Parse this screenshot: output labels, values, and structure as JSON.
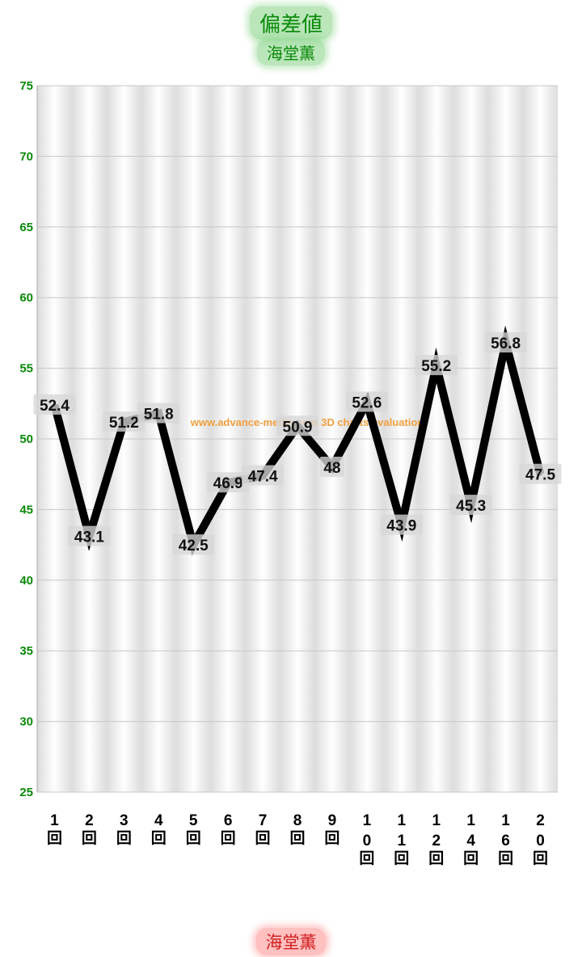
{
  "chart_data": {
    "type": "line",
    "title": "偏差値",
    "subtitle": "海堂薫",
    "categories": [
      "1回",
      "2回",
      "3回",
      "4回",
      "5回",
      "6回",
      "7回",
      "8回",
      "9回",
      "10回",
      "11回",
      "12回",
      "14回",
      "16回",
      "20回"
    ],
    "series": [
      {
        "name": "海堂薫",
        "values": [
          52.4,
          43.1,
          51.2,
          51.8,
          42.5,
          46.9,
          47.4,
          50.9,
          48,
          52.6,
          43.9,
          55.2,
          45.3,
          56.8,
          47.5
        ],
        "color": "#000000"
      }
    ],
    "ylim": [
      25,
      75
    ],
    "yticks": [
      25,
      30,
      35,
      40,
      45,
      50,
      55,
      60,
      65,
      70,
      75
    ],
    "grid": true,
    "legend_position": "bottom",
    "watermark": "www.advance-media.com 3D charts evaluation"
  },
  "colors": {
    "axis_label": "#0a8a0a",
    "title_text": "#0a8a0a",
    "legend_text": "#d02020",
    "watermark": "#f0a040",
    "grid": "#c8c8c8"
  }
}
